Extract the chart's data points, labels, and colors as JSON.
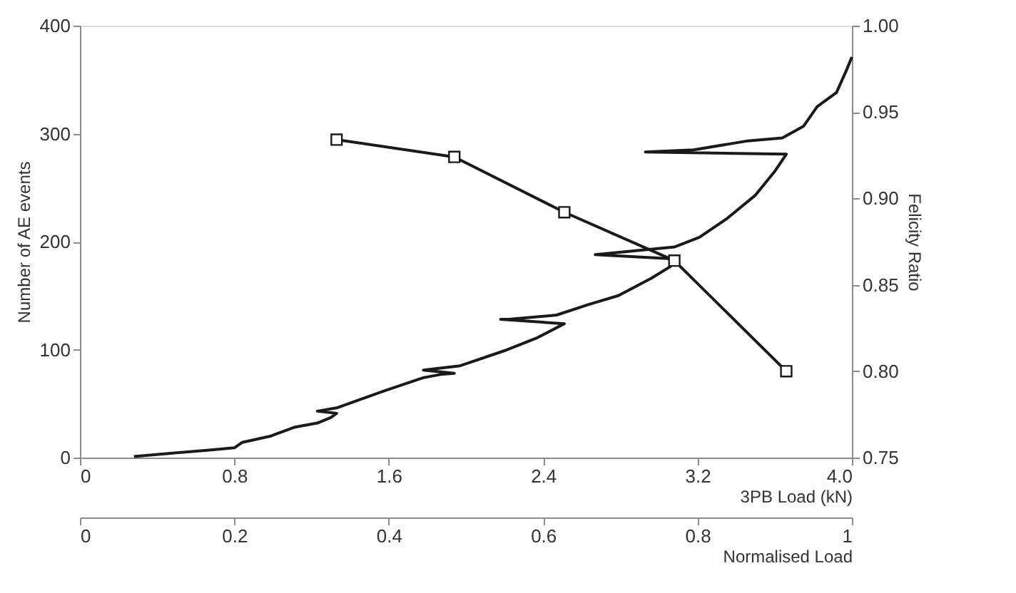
{
  "chart_data": {
    "type": "line",
    "xlabel": "3PB Load (kN)",
    "ylabel": "Number of AE events",
    "y2label": "Felicity Ratio",
    "x2label": "Normalised Load",
    "xlim": [
      0,
      4
    ],
    "xticks": [
      0,
      0.8,
      1.6,
      2.4,
      3.2,
      {
        "value": 4,
        "label": "4.0"
      }
    ],
    "ylim": [
      0,
      400
    ],
    "yticks": [
      0,
      100,
      200,
      300,
      400
    ],
    "y2lim": [
      0.75,
      1
    ],
    "y2ticks": [
      0.75,
      {
        "value": 0.8,
        "label": "0.80"
      },
      0.85,
      {
        "value": 0.9,
        "label": "0.90"
      },
      0.95,
      {
        "value": 1,
        "label": "1.00"
      }
    ],
    "x2lim": [
      0,
      1
    ],
    "x2ticks": [
      0,
      0.2,
      0.4,
      0.6,
      0.8,
      1
    ],
    "grid": false,
    "series": [
      {
        "color": "#1a1a1a",
        "marker": "none",
        "x": [
          0.28,
          0.47,
          0.67,
          0.8,
          0.84,
          0.99,
          1.11,
          1.23,
          1.3,
          1.33,
          1.23,
          1.33,
          1.58,
          1.78,
          1.87,
          1.94,
          1.78,
          1.97,
          2.2,
          2.37,
          2.51,
          2.18,
          2.22,
          2.47,
          2.64,
          2.79,
          2.96,
          3.06,
          3.08,
          2.67,
          3.08,
          3.21,
          3.35,
          3.5,
          3.6,
          3.66,
          2.93,
          3.18,
          3.45,
          3.64,
          3.75,
          3.82,
          3.92,
          3.97,
          4.0
        ],
        "values": [
          1,
          4,
          7,
          9,
          14,
          20,
          28,
          32,
          37,
          41,
          43,
          46,
          62,
          74,
          77,
          78,
          81,
          85,
          99,
          111,
          124,
          128,
          128,
          132,
          142,
          150,
          166,
          177,
          184,
          188,
          195,
          204,
          221,
          243,
          265,
          281,
          283,
          285,
          293,
          296,
          307,
          325,
          338,
          358,
          371
        ]
      },
      {
        "axis": "y2",
        "color": "#1a1a1a",
        "marker": "square",
        "x": [
          1.33,
          1.94,
          2.51,
          3.08,
          3.66
        ],
        "values": [
          0.934,
          0.924,
          0.892,
          0.864,
          0.8
        ]
      }
    ]
  }
}
